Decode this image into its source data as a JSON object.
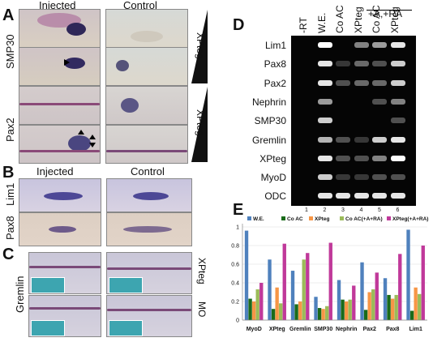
{
  "panels": {
    "A": {
      "label": "A",
      "col_headers": [
        "Injected",
        "Control"
      ],
      "row_labels": [
        "SMP30",
        "Pax2"
      ],
      "side_labels": [
        "XPteg",
        "XPteg"
      ]
    },
    "B": {
      "label": "B",
      "col_headers": [
        "Injected",
        "Control"
      ],
      "row_labels": [
        "Lim1",
        "Pax8"
      ]
    },
    "C": {
      "label": "C",
      "row_label": "Gremlin",
      "side_labels": [
        "XPteg",
        "MO"
      ]
    },
    "D": {
      "label": "D",
      "col_headers": [
        "-RT",
        "W.E.",
        "Co AC",
        "XPteg",
        "Co AC",
        "XPteg"
      ],
      "group_header": "+A,+RA",
      "lane_numbers": [
        "1",
        "2",
        "3",
        "4",
        "5",
        "6"
      ],
      "genes": [
        "Lim1",
        "Pax8",
        "Pax2",
        "Nephrin",
        "SMP30",
        "Gremlin",
        "XPteg",
        "MyoD",
        "ODC"
      ],
      "band_intensity": [
        [
          0,
          1.0,
          0,
          0.5,
          0.6,
          0.9
        ],
        [
          0,
          0.9,
          0.2,
          0.4,
          0.3,
          0.8
        ],
        [
          0,
          0.9,
          0.3,
          0.4,
          0.4,
          0.8
        ],
        [
          0,
          0.6,
          0,
          0,
          0.3,
          0.5
        ],
        [
          0,
          0.8,
          0,
          0,
          0,
          0.3
        ],
        [
          0,
          0.7,
          0.3,
          0.2,
          0.8,
          0.9
        ],
        [
          0,
          0.9,
          0.3,
          0.3,
          0.5,
          1.0
        ],
        [
          0,
          0.8,
          0.2,
          0.2,
          0.3,
          0.3
        ],
        [
          0,
          0.9,
          0.9,
          0.9,
          0.9,
          0.9
        ]
      ]
    },
    "E": {
      "label": "E"
    }
  },
  "chart_data": {
    "type": "bar",
    "categories": [
      "MyoD",
      "XPteg",
      "Gremlin",
      "SMP30",
      "Nephrin",
      "Pax2",
      "Pax8",
      "Lim1"
    ],
    "ylim": [
      0,
      1
    ],
    "yticks": [
      "0",
      "0.2",
      "0.4",
      "0.6",
      "0.8",
      "1"
    ],
    "legend_position": "top",
    "series": [
      {
        "name": "W.E.",
        "color": "#4f81bd",
        "values": [
          0.96,
          0.65,
          0.53,
          0.25,
          0.43,
          0.62,
          0.45,
          0.97
        ]
      },
      {
        "name": "Co AC",
        "color": "#1a6b1a",
        "values": [
          0.23,
          0.12,
          0.17,
          0.13,
          0.22,
          0.11,
          0.27,
          0.1
        ]
      },
      {
        "name": "XPteg",
        "color": "#f79646",
        "values": [
          0.2,
          0.35,
          0.2,
          0.12,
          0.2,
          0.3,
          0.23,
          0.35
        ]
      },
      {
        "name": "Co AC(+A+RA)",
        "color": "#9bbb59",
        "values": [
          0.33,
          0.18,
          0.65,
          0.15,
          0.22,
          0.33,
          0.27,
          0.28
        ]
      },
      {
        "name": "XPteg(+A+RA)",
        "color": "#c0399a",
        "values": [
          0.4,
          0.82,
          0.72,
          0.83,
          0.37,
          0.51,
          0.71,
          0.8
        ]
      }
    ]
  }
}
